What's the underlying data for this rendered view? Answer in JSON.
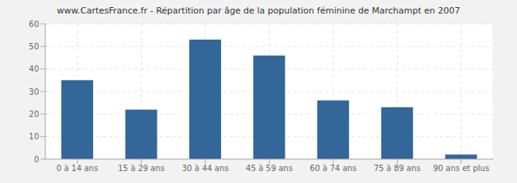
{
  "chart_data": {
    "type": "bar",
    "title": "www.CartesFrance.fr - Répartition par âge de la population féminine de Marchampt en 2007",
    "categories": [
      "0 à 14 ans",
      "15 à 29 ans",
      "30 à 44 ans",
      "45 à 59 ans",
      "60 à 74 ans",
      "75 à 89 ans",
      "90 ans et plus"
    ],
    "values": [
      35,
      22,
      53,
      46,
      26,
      23,
      2
    ],
    "color": "#336699",
    "ylim": [
      0,
      60
    ],
    "yticks": [
      0,
      10,
      20,
      30,
      40,
      50,
      60
    ],
    "grid": true
  }
}
